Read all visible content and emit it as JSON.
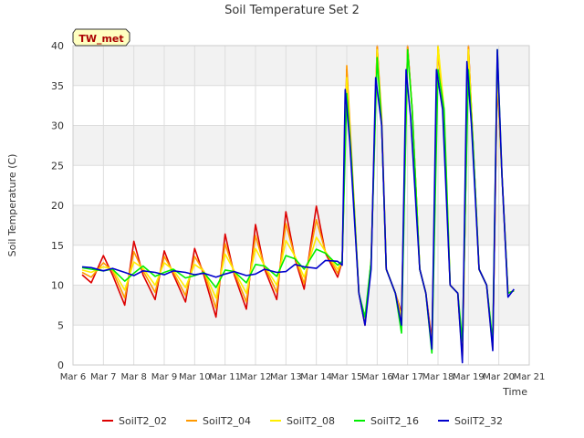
{
  "chart_data": {
    "type": "line",
    "title": "Soil Temperature Set 2",
    "xlabel": "Time",
    "ylabel": "Soil Temperature (C)",
    "site_label": "TW_met",
    "xlim": [
      6,
      21
    ],
    "ylim": [
      0,
      40
    ],
    "x_ticks": [
      {
        "value": 6,
        "label": "Mar 6"
      },
      {
        "value": 7,
        "label": "Mar 7"
      },
      {
        "value": 8,
        "label": "Mar 8"
      },
      {
        "value": 9,
        "label": "Mar 9"
      },
      {
        "value": 10,
        "label": "Mar 10"
      },
      {
        "value": 11,
        "label": "Mar 11"
      },
      {
        "value": 12,
        "label": "Mar 12"
      },
      {
        "value": 13,
        "label": "Mar 13"
      },
      {
        "value": 14,
        "label": "Mar 14"
      },
      {
        "value": 15,
        "label": "Mar 15"
      },
      {
        "value": 16,
        "label": "Mar 16"
      },
      {
        "value": 17,
        "label": "Mar 17"
      },
      {
        "value": 18,
        "label": "Mar 18"
      },
      {
        "value": 19,
        "label": "Mar 19"
      },
      {
        "value": 20,
        "label": "Mar 20"
      },
      {
        "value": 21,
        "label": "Mar 21"
      }
    ],
    "y_ticks": [
      0,
      5,
      10,
      15,
      20,
      25,
      30,
      35,
      40
    ],
    "grid": true,
    "legend_position": "bottom",
    "series": [
      {
        "name": "SoilT2_02",
        "color": "#dd0000",
        "points": [
          [
            6.3,
            11.3
          ],
          [
            6.6,
            10.3
          ],
          [
            7.0,
            13.7
          ],
          [
            7.3,
            11.3
          ],
          [
            7.7,
            7.5
          ],
          [
            8.0,
            15.5
          ],
          [
            8.3,
            11.3
          ],
          [
            8.7,
            8.2
          ],
          [
            9.0,
            14.3
          ],
          [
            9.3,
            11.3
          ],
          [
            9.7,
            7.9
          ],
          [
            10.0,
            14.6
          ],
          [
            10.3,
            11.3
          ],
          [
            10.7,
            6.0
          ],
          [
            11.0,
            16.4
          ],
          [
            11.3,
            11.3
          ],
          [
            11.7,
            7.0
          ],
          [
            12.0,
            17.6
          ],
          [
            12.3,
            12.0
          ],
          [
            12.7,
            8.2
          ],
          [
            13.0,
            19.2
          ],
          [
            13.3,
            13.3
          ],
          [
            13.6,
            9.5
          ],
          [
            14.0,
            19.9
          ],
          [
            14.3,
            14.0
          ],
          [
            14.7,
            11.0
          ],
          [
            14.85,
            13.0
          ],
          [
            15.0,
            37.0
          ],
          [
            15.15,
            26.0
          ],
          [
            15.4,
            9.0
          ],
          [
            15.6,
            5.0
          ],
          [
            15.8,
            13.0
          ],
          [
            16.0,
            40.0
          ],
          [
            16.15,
            30.0
          ],
          [
            16.3,
            12.0
          ],
          [
            16.6,
            9.0
          ],
          [
            16.8,
            6.5
          ],
          [
            17.0,
            40.0
          ],
          [
            17.15,
            32.0
          ],
          [
            17.4,
            12.0
          ],
          [
            17.6,
            9.0
          ],
          [
            17.8,
            3.0
          ],
          [
            18.0,
            40.0
          ],
          [
            18.2,
            30.0
          ],
          [
            18.4,
            10.0
          ],
          [
            18.65,
            9.0
          ],
          [
            18.8,
            1.0
          ],
          [
            19.0,
            40.0
          ],
          [
            19.15,
            28.0
          ],
          [
            19.35,
            12.0
          ],
          [
            19.6,
            10.0
          ],
          [
            19.8,
            2.5
          ],
          [
            19.95,
            36.0
          ],
          [
            20.1,
            24.0
          ],
          [
            20.3,
            9.0
          ],
          [
            20.5,
            9.3
          ]
        ]
      },
      {
        "name": "SoilT2_04",
        "color": "#ff9900",
        "points": [
          [
            6.3,
            11.6
          ],
          [
            6.6,
            11.0
          ],
          [
            7.0,
            12.8
          ],
          [
            7.3,
            11.8
          ],
          [
            7.7,
            8.4
          ],
          [
            8.0,
            14.2
          ],
          [
            8.3,
            11.8
          ],
          [
            8.7,
            9.1
          ],
          [
            9.0,
            13.6
          ],
          [
            9.3,
            11.6
          ],
          [
            9.7,
            8.7
          ],
          [
            10.0,
            13.6
          ],
          [
            10.3,
            11.7
          ],
          [
            10.7,
            7.1
          ],
          [
            11.0,
            15.2
          ],
          [
            11.3,
            11.6
          ],
          [
            11.7,
            7.9
          ],
          [
            12.0,
            16.2
          ],
          [
            12.3,
            12.3
          ],
          [
            12.7,
            9.1
          ],
          [
            13.0,
            17.7
          ],
          [
            13.3,
            13.5
          ],
          [
            13.6,
            10.2
          ],
          [
            14.0,
            18.2
          ],
          [
            14.3,
            14.2
          ],
          [
            14.7,
            11.5
          ],
          [
            14.85,
            13.0
          ],
          [
            15.0,
            37.5
          ],
          [
            15.15,
            27.0
          ],
          [
            15.4,
            9.0
          ],
          [
            15.6,
            5.2
          ],
          [
            15.8,
            13.0
          ],
          [
            16.0,
            40.0
          ],
          [
            16.15,
            31.0
          ],
          [
            16.3,
            12.0
          ],
          [
            16.6,
            9.0
          ],
          [
            16.8,
            6.0
          ],
          [
            17.0,
            40.0
          ],
          [
            17.15,
            32.0
          ],
          [
            17.4,
            12.0
          ],
          [
            17.6,
            9.0
          ],
          [
            17.8,
            2.5
          ],
          [
            18.0,
            40.0
          ],
          [
            18.2,
            30.0
          ],
          [
            18.4,
            10.0
          ],
          [
            18.65,
            9.0
          ],
          [
            18.8,
            1.0
          ],
          [
            19.0,
            40.0
          ],
          [
            19.15,
            28.0
          ],
          [
            19.35,
            12.0
          ],
          [
            19.6,
            10.0
          ],
          [
            19.8,
            2.3
          ],
          [
            19.95,
            37.0
          ],
          [
            20.1,
            24.0
          ],
          [
            20.3,
            9.0
          ],
          [
            20.5,
            9.3
          ]
        ]
      },
      {
        "name": "SoilT2_08",
        "color": "#ffee00",
        "points": [
          [
            6.3,
            11.9
          ],
          [
            6.6,
            11.6
          ],
          [
            7.0,
            12.3
          ],
          [
            7.3,
            12.0
          ],
          [
            7.7,
            9.4
          ],
          [
            8.0,
            12.9
          ],
          [
            8.3,
            12.1
          ],
          [
            8.7,
            10.0
          ],
          [
            9.0,
            12.8
          ],
          [
            9.3,
            11.9
          ],
          [
            9.7,
            9.7
          ],
          [
            10.0,
            12.6
          ],
          [
            10.3,
            11.8
          ],
          [
            10.7,
            8.4
          ],
          [
            11.0,
            13.9
          ],
          [
            11.3,
            11.8
          ],
          [
            11.7,
            9.0
          ],
          [
            12.0,
            14.6
          ],
          [
            12.3,
            12.4
          ],
          [
            12.7,
            10.0
          ],
          [
            13.0,
            15.6
          ],
          [
            13.3,
            13.6
          ],
          [
            13.6,
            11.0
          ],
          [
            14.0,
            16.0
          ],
          [
            14.3,
            14.2
          ],
          [
            14.7,
            12.0
          ],
          [
            14.85,
            13.0
          ],
          [
            15.0,
            36.0
          ],
          [
            15.15,
            26.0
          ],
          [
            15.4,
            9.0
          ],
          [
            15.6,
            5.5
          ],
          [
            15.8,
            13.0
          ],
          [
            16.0,
            39.5
          ],
          [
            16.15,
            30.0
          ],
          [
            16.3,
            12.0
          ],
          [
            16.6,
            9.0
          ],
          [
            16.8,
            6.0
          ],
          [
            17.0,
            39.5
          ],
          [
            17.15,
            32.0
          ],
          [
            17.4,
            12.0
          ],
          [
            17.6,
            9.0
          ],
          [
            17.8,
            2.0
          ],
          [
            18.0,
            40.0
          ],
          [
            18.2,
            32.0
          ],
          [
            18.4,
            10.0
          ],
          [
            18.65,
            9.0
          ],
          [
            18.8,
            1.0
          ],
          [
            19.0,
            39.5
          ],
          [
            19.15,
            28.0
          ],
          [
            19.35,
            12.0
          ],
          [
            19.6,
            10.0
          ],
          [
            19.8,
            2.0
          ],
          [
            19.95,
            37.0
          ],
          [
            20.1,
            24.0
          ],
          [
            20.3,
            9.0
          ],
          [
            20.5,
            9.3
          ]
        ]
      },
      {
        "name": "SoilT2_16",
        "color": "#00ee00",
        "points": [
          [
            6.3,
            12.2
          ],
          [
            6.6,
            12.0
          ],
          [
            7.0,
            11.8
          ],
          [
            7.3,
            12.0
          ],
          [
            7.7,
            10.5
          ],
          [
            8.0,
            11.5
          ],
          [
            8.3,
            12.4
          ],
          [
            8.7,
            11.1
          ],
          [
            9.0,
            11.6
          ],
          [
            9.3,
            12.0
          ],
          [
            9.7,
            10.9
          ],
          [
            10.0,
            11.2
          ],
          [
            10.3,
            11.6
          ],
          [
            10.7,
            9.7
          ],
          [
            11.0,
            11.9
          ],
          [
            11.3,
            11.7
          ],
          [
            11.7,
            10.3
          ],
          [
            12.0,
            12.6
          ],
          [
            12.3,
            12.4
          ],
          [
            12.7,
            11.1
          ],
          [
            13.0,
            13.7
          ],
          [
            13.3,
            13.3
          ],
          [
            13.6,
            12.0
          ],
          [
            14.0,
            14.5
          ],
          [
            14.3,
            14.0
          ],
          [
            14.7,
            12.5
          ],
          [
            14.85,
            13.0
          ],
          [
            15.0,
            34.0
          ],
          [
            15.15,
            26.0
          ],
          [
            15.4,
            9.0
          ],
          [
            15.6,
            6.0
          ],
          [
            15.8,
            13.0
          ],
          [
            16.0,
            38.5
          ],
          [
            16.15,
            30.0
          ],
          [
            16.3,
            12.0
          ],
          [
            16.6,
            9.0
          ],
          [
            16.8,
            4.0
          ],
          [
            17.0,
            39.5
          ],
          [
            17.15,
            32.0
          ],
          [
            17.4,
            12.0
          ],
          [
            17.6,
            9.0
          ],
          [
            17.8,
            1.5
          ],
          [
            18.0,
            37.0
          ],
          [
            18.2,
            32.0
          ],
          [
            18.4,
            10.0
          ],
          [
            18.65,
            9.0
          ],
          [
            18.8,
            3.0
          ],
          [
            19.0,
            37.0
          ],
          [
            19.15,
            28.0
          ],
          [
            19.35,
            12.0
          ],
          [
            19.6,
            10.0
          ],
          [
            19.8,
            3.0
          ],
          [
            19.95,
            39.5
          ],
          [
            20.1,
            24.0
          ],
          [
            20.3,
            9.0
          ],
          [
            20.5,
            9.3
          ]
        ]
      },
      {
        "name": "SoilT2_32",
        "color": "#0000cc",
        "points": [
          [
            6.3,
            12.3
          ],
          [
            6.6,
            12.2
          ],
          [
            7.0,
            11.8
          ],
          [
            7.3,
            12.1
          ],
          [
            7.7,
            11.6
          ],
          [
            8.0,
            11.2
          ],
          [
            8.3,
            11.8
          ],
          [
            8.7,
            11.6
          ],
          [
            9.0,
            11.3
          ],
          [
            9.3,
            11.8
          ],
          [
            9.7,
            11.6
          ],
          [
            10.0,
            11.3
          ],
          [
            10.3,
            11.5
          ],
          [
            10.7,
            11.0
          ],
          [
            11.0,
            11.4
          ],
          [
            11.3,
            11.7
          ],
          [
            11.7,
            11.2
          ],
          [
            12.0,
            11.4
          ],
          [
            12.3,
            12.0
          ],
          [
            12.7,
            11.6
          ],
          [
            13.0,
            11.7
          ],
          [
            13.3,
            12.6
          ],
          [
            13.6,
            12.3
          ],
          [
            14.0,
            12.1
          ],
          [
            14.3,
            13.1
          ],
          [
            14.7,
            13.0
          ],
          [
            14.85,
            12.5
          ],
          [
            14.95,
            34.5
          ],
          [
            15.1,
            28.0
          ],
          [
            15.4,
            9.0
          ],
          [
            15.6,
            5.0
          ],
          [
            15.8,
            12.0
          ],
          [
            15.95,
            36.0
          ],
          [
            16.15,
            30.0
          ],
          [
            16.3,
            12.0
          ],
          [
            16.6,
            9.0
          ],
          [
            16.8,
            5.0
          ],
          [
            16.95,
            37.0
          ],
          [
            17.1,
            31.0
          ],
          [
            17.4,
            12.0
          ],
          [
            17.6,
            9.0
          ],
          [
            17.8,
            2.0
          ],
          [
            17.95,
            37.0
          ],
          [
            18.15,
            32.0
          ],
          [
            18.4,
            10.0
          ],
          [
            18.65,
            9.0
          ],
          [
            18.8,
            0.3
          ],
          [
            18.95,
            38.0
          ],
          [
            19.1,
            30.0
          ],
          [
            19.35,
            12.0
          ],
          [
            19.6,
            10.0
          ],
          [
            19.8,
            1.8
          ],
          [
            19.95,
            39.5
          ],
          [
            20.1,
            24.0
          ],
          [
            20.3,
            8.5
          ],
          [
            20.5,
            9.5
          ]
        ]
      }
    ]
  }
}
